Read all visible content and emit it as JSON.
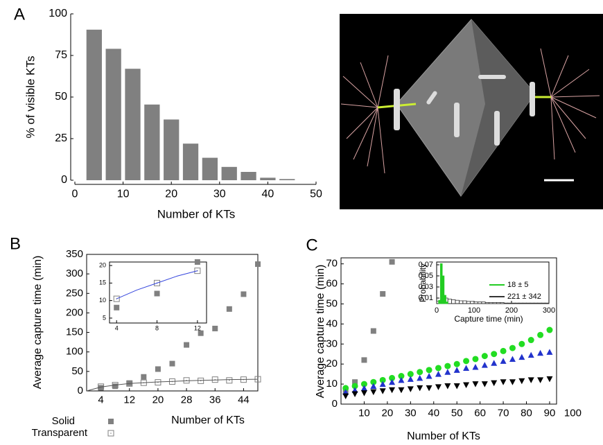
{
  "chart_data": [
    {
      "type": "bar",
      "label": "A",
      "xlabel": "Number of KTs",
      "ylabel": "% of visible KTs",
      "categories": [
        4,
        8,
        12,
        16,
        20,
        24,
        28,
        32,
        36,
        40,
        44
      ],
      "values": [
        90.5,
        79,
        67,
        45.5,
        36.5,
        22,
        13.5,
        8,
        5,
        1.5,
        0.7
      ],
      "bar_width": 3.2,
      "color": "#808080",
      "frame": false,
      "xlim": [
        0,
        50
      ],
      "xticks": [
        0,
        10,
        20,
        30,
        40,
        50
      ],
      "ylim": [
        0,
        100
      ],
      "yticks": [
        0,
        25,
        50,
        75,
        100
      ]
    },
    {
      "type": "scatter",
      "label": "B",
      "xlabel": "Number of KTs",
      "ylabel": "Average capture time (min)",
      "frame": true,
      "legend": "bottom-left",
      "xlim": [
        0,
        48
      ],
      "xticks": [
        4,
        12,
        20,
        28,
        36,
        44
      ],
      "ylim": [
        0,
        350
      ],
      "yticks": [
        0,
        50,
        100,
        150,
        200,
        250,
        300,
        350
      ],
      "series": [
        {
          "name": "Solid",
          "marker": "square",
          "color": "#808080",
          "x": [
            4,
            8,
            12,
            16,
            20,
            24,
            28,
            32,
            36,
            40,
            44,
            48
          ],
          "values": [
            8,
            12,
            20,
            36,
            56,
            70,
            118,
            148,
            160,
            210,
            248,
            325
          ]
        },
        {
          "name": "Transparent",
          "marker": "open-square",
          "color": "#808080",
          "x": [
            4,
            8,
            12,
            16,
            20,
            24,
            28,
            32,
            36,
            40,
            44,
            48
          ],
          "values": [
            11,
            15,
            19,
            21,
            22,
            24,
            27,
            26,
            29,
            27,
            29,
            30
          ]
        },
        {
          "marker": "line",
          "color": "#555555",
          "x": [
            0,
            4,
            8,
            12,
            16,
            20,
            24,
            28,
            32,
            36,
            40,
            44,
            48
          ],
          "values": [
            0,
            10,
            15,
            19,
            21,
            23,
            24.5,
            26,
            27,
            28,
            29,
            29.5,
            30
          ]
        }
      ]
    },
    {
      "type": "scatter",
      "frame": true,
      "xlim": [
        3.3,
        12.9
      ],
      "xticks": [
        4,
        8,
        12
      ],
      "ylim": [
        3.6,
        21
      ],
      "yticks": [
        5,
        10,
        15,
        20
      ],
      "series": [
        {
          "marker": "square",
          "color": "#808080",
          "x": [
            4,
            8,
            12
          ],
          "values": [
            8,
            12,
            21
          ]
        },
        {
          "marker": "open-square",
          "color": "#808080",
          "x": [
            4,
            8,
            12
          ],
          "values": [
            10.5,
            15,
            18.5
          ]
        },
        {
          "marker": "line",
          "color": "#3344dd",
          "x": [
            4,
            6,
            8,
            10,
            12
          ],
          "values": [
            10.5,
            13,
            15,
            17,
            18.5
          ]
        }
      ]
    },
    {
      "type": "scatter",
      "label": "C",
      "xlabel": "Number of KTs",
      "ylabel": "Average capture time (min)",
      "frame": true,
      "xlim": [
        0,
        93
      ],
      "xticks": [
        10,
        20,
        30,
        40,
        50,
        60,
        70,
        80,
        90,
        100
      ],
      "ylim": [
        0,
        73
      ],
      "yticks": [
        0,
        10,
        20,
        30,
        40,
        50,
        60,
        70
      ],
      "series": [
        {
          "marker": "square",
          "color": "#808080",
          "x": [
            2,
            6,
            10,
            14,
            18,
            22
          ],
          "values": [
            7,
            11,
            22,
            36.5,
            55,
            71
          ]
        },
        {
          "marker": "circle",
          "color": "#22dd22",
          "x": [
            2,
            6,
            10,
            14,
            18,
            22,
            26,
            30,
            34,
            38,
            42,
            46,
            50,
            54,
            58,
            62,
            66,
            70,
            74,
            78,
            82,
            86,
            90
          ],
          "values": [
            8,
            9,
            10,
            11,
            12,
            13,
            14,
            15,
            16,
            17,
            18,
            19,
            20,
            21.5,
            22.5,
            24,
            25,
            26.5,
            28,
            30,
            32,
            34.5,
            37
          ]
        },
        {
          "marker": "triangle",
          "color": "#2233cc",
          "x": [
            2,
            6,
            10,
            14,
            18,
            22,
            26,
            30,
            34,
            38,
            42,
            46,
            50,
            54,
            58,
            62,
            66,
            70,
            74,
            78,
            82,
            86,
            90
          ],
          "values": [
            6,
            7,
            8,
            9,
            10,
            11,
            12,
            12.5,
            13,
            14,
            15,
            16,
            17,
            18,
            18.5,
            19.5,
            20.5,
            21.5,
            22.5,
            23.5,
            24.5,
            25.5,
            26
          ]
        },
        {
          "marker": "triangle-down",
          "color": "#000000",
          "x": [
            2,
            6,
            10,
            14,
            18,
            22,
            26,
            30,
            34,
            38,
            42,
            46,
            50,
            54,
            58,
            62,
            66,
            70,
            74,
            78,
            82,
            86,
            90
          ],
          "values": [
            4,
            5,
            5.5,
            6,
            6.5,
            7,
            7,
            7.5,
            8,
            8,
            8.5,
            9,
            9,
            9.5,
            10,
            10,
            10.5,
            11,
            11,
            11.5,
            12,
            12,
            12.5
          ]
        }
      ]
    },
    {
      "type": "histogram",
      "xlabel": "Capture time (min)",
      "ylabel": "Probability",
      "frame": true,
      "legend": "upper-right",
      "xlim": [
        0,
        300
      ],
      "xticks": [
        0,
        100,
        200,
        300
      ],
      "ylim": [
        0,
        0.075
      ],
      "yticks": [
        0.01,
        0.03,
        0.05,
        0.07
      ],
      "series": [
        {
          "name": "18 ± 5",
          "color": "#22cc22",
          "bins": [
            5,
            10,
            15,
            20,
            25,
            30
          ],
          "values": [
            0.006,
            0.072,
            0.05,
            0.015,
            0.003
          ]
        },
        {
          "name": "221 ± 342",
          "color": "#333333",
          "bins": [
            0,
            10,
            20,
            30,
            40,
            50,
            60,
            70,
            80,
            90,
            100,
            110,
            120,
            130,
            140,
            150,
            160,
            170,
            180,
            190,
            200,
            210,
            220,
            230,
            240,
            250,
            260,
            270,
            280,
            290,
            300
          ],
          "values": [
            0.004,
            0.013,
            0.01,
            0.008,
            0.007,
            0.006,
            0.005,
            0.005,
            0.004,
            0.004,
            0.003,
            0.003,
            0.003,
            0.002,
            0.002,
            0.002,
            0.002,
            0.002,
            0.001,
            0.001,
            0.001,
            0.001,
            0.001,
            0.001,
            0.001,
            0.001,
            0.001,
            0.001,
            0.001,
            0.001
          ]
        }
      ]
    }
  ]
}
